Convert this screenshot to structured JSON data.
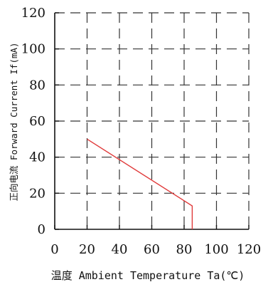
{
  "chart_data": {
    "type": "line",
    "title": "",
    "xlabel": "温度 Ambient Temperature Ta(℃)",
    "ylabel": "正向电流 Forward Current If(mA)",
    "xlim": [
      0,
      120
    ],
    "ylim": [
      0,
      120
    ],
    "x_ticks": [
      0,
      20,
      40,
      60,
      80,
      100,
      120
    ],
    "y_ticks": [
      0,
      20,
      40,
      60,
      80,
      100,
      120
    ],
    "grid": "dashed",
    "series": [
      {
        "color": "#e03a3a",
        "x": [
          20,
          85,
          85
        ],
        "y": [
          50,
          13,
          0
        ]
      }
    ]
  }
}
